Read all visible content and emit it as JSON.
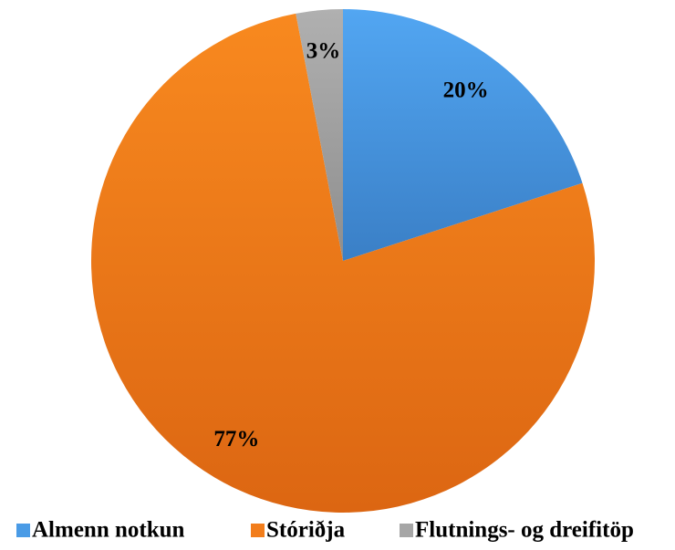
{
  "chart_data": {
    "type": "pie",
    "categories": [
      "Almenn notkun",
      "Stóriðja",
      "Flutnings- og dreifitöp"
    ],
    "values": [
      20,
      77,
      3
    ],
    "value_labels": [
      "20%",
      "77%",
      "3%"
    ],
    "colors": [
      "#4a9be6",
      "#f27d1b",
      "#a6a6a6"
    ],
    "legend": "bottom"
  }
}
